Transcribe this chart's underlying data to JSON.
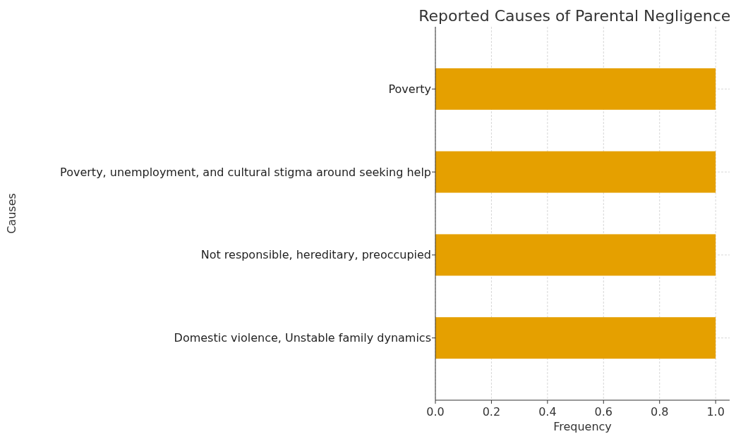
{
  "chart_data": {
    "type": "bar",
    "orientation": "horizontal",
    "title": "Reported Causes of Parental Negligence",
    "xlabel": "Frequency",
    "ylabel": "Causes",
    "categories": [
      "Poverty",
      "Poverty, unemployment, and cultural stigma around seeking help",
      "Not responsible, hereditary, preoccupied",
      "Domestic violence, Unstable family dynamics"
    ],
    "values": [
      1,
      1,
      1,
      1
    ],
    "color": "#e5a000",
    "xlim": [
      0,
      1.05
    ],
    "xticks": [
      {
        "value": 0,
        "label": "0.0"
      },
      {
        "value": 0.2,
        "label": "0.2"
      },
      {
        "value": 0.4,
        "label": "0.4"
      },
      {
        "value": 0.6,
        "label": "0.6"
      },
      {
        "value": 0.8,
        "label": "0.8"
      },
      {
        "value": 1,
        "label": "1.0"
      }
    ],
    "grid": true
  }
}
